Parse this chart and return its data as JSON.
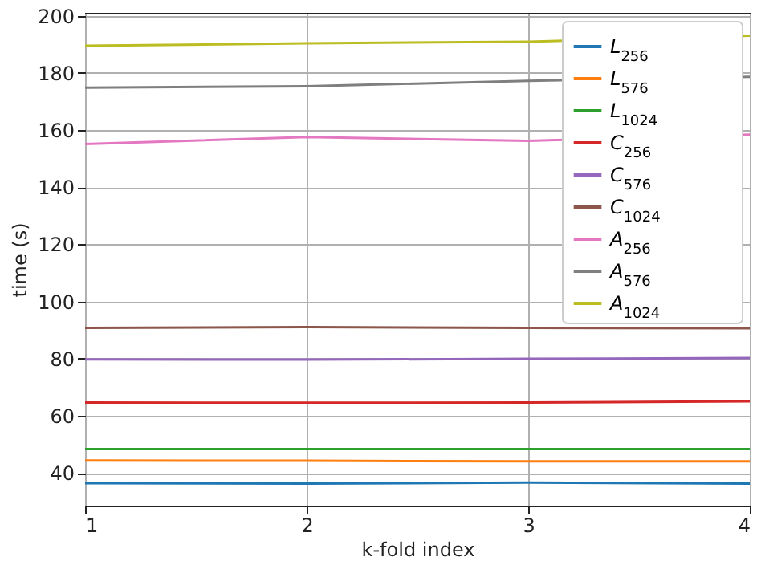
{
  "chart_data": {
    "type": "line",
    "xlabel": "k-fold index",
    "ylabel": "time (s)",
    "x": [
      1,
      2,
      3,
      4
    ],
    "xlim": [
      1,
      4
    ],
    "xticks": [
      1,
      2,
      3,
      4
    ],
    "ylim": [
      28.5,
      201
    ],
    "yticks": [
      40,
      60,
      80,
      100,
      120,
      140,
      160,
      180,
      200
    ],
    "grid": true,
    "legend": "top right",
    "series": [
      {
        "name": "L$_{256}$",
        "color": "#1f77b4",
        "values": [
          36.4,
          36.2,
          36.6,
          36.2
        ]
      },
      {
        "name": "L$_{576}$",
        "color": "#ff7f0e",
        "values": [
          44.3,
          44.2,
          44.0,
          44.0
        ]
      },
      {
        "name": "L$_{1024}$",
        "color": "#2ca02c",
        "values": [
          48.3,
          48.3,
          48.3,
          48.3
        ]
      },
      {
        "name": "C$_{256}$",
        "color": "#d62728",
        "values": [
          64.6,
          64.5,
          64.6,
          65.0
        ]
      },
      {
        "name": "C$_{576}$",
        "color": "#9467bd",
        "values": [
          79.7,
          79.6,
          79.9,
          80.2
        ]
      },
      {
        "name": "C$_{1024}$",
        "color": "#8c564b",
        "values": [
          90.7,
          91.0,
          90.7,
          90.6
        ]
      },
      {
        "name": "A$_{256}$",
        "color": "#e377c2",
        "values": [
          155.1,
          157.5,
          156.2,
          158.4
        ]
      },
      {
        "name": "A$_{576}$",
        "color": "#7f7f7f",
        "values": [
          174.8,
          175.3,
          177.2,
          178.6
        ]
      },
      {
        "name": "A$_{1024}$",
        "color": "#bcbd22",
        "values": [
          189.5,
          190.3,
          190.9,
          193.0
        ]
      }
    ]
  }
}
